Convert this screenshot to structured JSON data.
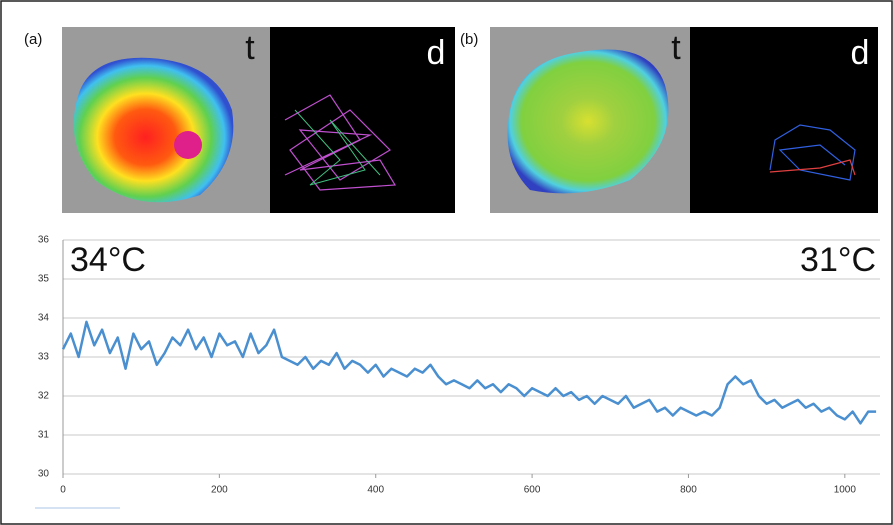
{
  "figure_panels": [
    {
      "label": "(a)",
      "thermal_label": "t",
      "track_label": "d"
    },
    {
      "label": "(b)",
      "thermal_label": "t",
      "track_label": "d"
    }
  ],
  "chart_data": {
    "type": "line",
    "annotations": [
      "34°C",
      "31°C"
    ],
    "x": [
      0,
      10,
      20,
      30,
      40,
      50,
      60,
      70,
      80,
      90,
      100,
      110,
      120,
      130,
      140,
      150,
      160,
      170,
      180,
      190,
      200,
      210,
      220,
      230,
      240,
      250,
      260,
      270,
      280,
      290,
      300,
      310,
      320,
      330,
      340,
      350,
      360,
      370,
      380,
      390,
      400,
      410,
      420,
      430,
      440,
      450,
      460,
      470,
      480,
      490,
      500,
      510,
      520,
      530,
      540,
      550,
      560,
      570,
      580,
      590,
      600,
      610,
      620,
      630,
      640,
      650,
      660,
      670,
      680,
      690,
      700,
      710,
      720,
      730,
      740,
      750,
      760,
      770,
      780,
      790,
      800,
      810,
      820,
      830,
      840,
      850,
      860,
      870,
      880,
      890,
      900,
      910,
      920,
      930,
      940,
      950,
      960,
      970,
      980,
      990,
      1000,
      1010,
      1020,
      1030,
      1040
    ],
    "series": [
      {
        "color": "#4a8fd0",
        "values": [
          33.2,
          33.6,
          33.0,
          33.9,
          33.3,
          33.7,
          33.1,
          33.5,
          32.7,
          33.6,
          33.2,
          33.4,
          32.8,
          33.1,
          33.5,
          33.3,
          33.7,
          33.2,
          33.5,
          33.0,
          33.6,
          33.3,
          33.4,
          33.0,
          33.6,
          33.1,
          33.3,
          33.7,
          33.0,
          32.9,
          32.8,
          33.0,
          32.7,
          32.9,
          32.8,
          33.1,
          32.7,
          32.9,
          32.8,
          32.6,
          32.8,
          32.5,
          32.7,
          32.6,
          32.5,
          32.7,
          32.6,
          32.8,
          32.5,
          32.3,
          32.4,
          32.3,
          32.2,
          32.4,
          32.2,
          32.3,
          32.1,
          32.3,
          32.2,
          32.0,
          32.2,
          32.1,
          32.0,
          32.2,
          32.0,
          32.1,
          31.9,
          32.0,
          31.8,
          32.0,
          31.9,
          31.8,
          32.0,
          31.7,
          31.8,
          31.9,
          31.6,
          31.7,
          31.5,
          31.7,
          31.6,
          31.5,
          31.6,
          31.5,
          31.7,
          32.3,
          32.5,
          32.3,
          32.4,
          32.0,
          31.8,
          31.9,
          31.7,
          31.8,
          31.9,
          31.7,
          31.8,
          31.6,
          31.7,
          31.5,
          31.4,
          31.6,
          31.3,
          31.6,
          31.6
        ]
      }
    ],
    "xlim": [
      0,
      1045
    ],
    "xticks": [
      0,
      200,
      400,
      600,
      800,
      1000
    ],
    "ylim": [
      30,
      36
    ],
    "yticks": [
      30,
      31,
      32,
      33,
      34,
      35,
      36
    ],
    "grid": true
  }
}
